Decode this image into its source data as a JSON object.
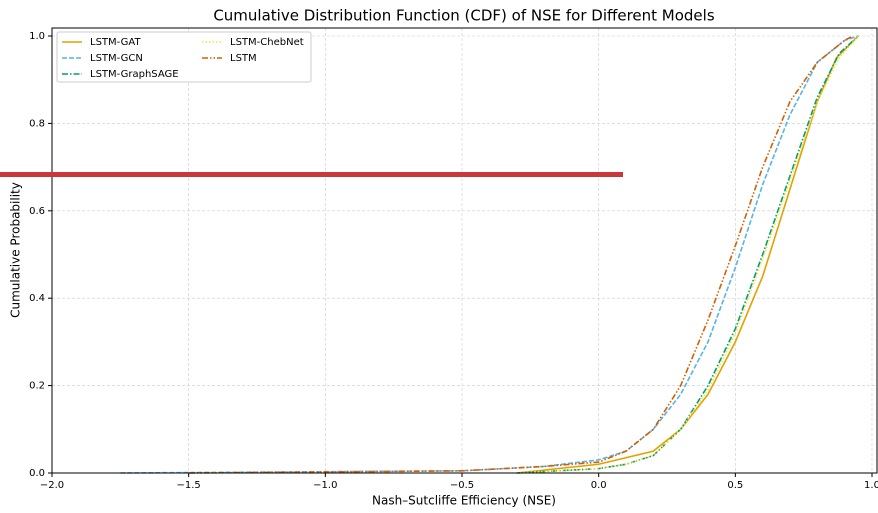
{
  "chart_data": {
    "type": "line",
    "title": "Cumulative Distribution Function (CDF) of NSE for Different Models",
    "xlabel": "Nash–Sutcliffe Efficiency (NSE)",
    "ylabel": "Cumulative Probability",
    "xlim": [
      -2.0,
      1.0
    ],
    "ylim": [
      0,
      1.0
    ],
    "xticks": [
      {
        "value": -2.0,
        "label": "−2.0"
      },
      {
        "value": -1.5,
        "label": "−1.5"
      },
      {
        "value": -1.0,
        "label": "−1.0"
      },
      {
        "value": -0.5,
        "label": "−0.5"
      },
      {
        "value": 0,
        "label": "0.0"
      },
      {
        "value": 0.5,
        "label": "0.5"
      },
      {
        "value": 1.0,
        "label": "1.0"
      }
    ],
    "yticks": [
      {
        "value": 0,
        "label": "0.0"
      },
      {
        "value": 0.2,
        "label": "0.2"
      },
      {
        "value": 0.4,
        "label": "0.4"
      },
      {
        "value": 0.6,
        "label": "0.6"
      },
      {
        "value": 0.8,
        "label": "0.8"
      },
      {
        "value": 1.0,
        "label": "1.0"
      }
    ],
    "grid": true,
    "legend": "upper-left",
    "series": [
      {
        "name": "LSTM-GAT",
        "color": "#E69F00",
        "linestyle": "solid",
        "x": [
          -0.3,
          0.0,
          0.2,
          0.3,
          0.4,
          0.5,
          0.6,
          0.7,
          0.8,
          0.87,
          0.95
        ],
        "values": [
          0.0,
          0.02,
          0.05,
          0.1,
          0.18,
          0.3,
          0.45,
          0.65,
          0.85,
          0.95,
          1.0
        ]
      },
      {
        "name": "LSTM-GCN",
        "color": "#56B4E9",
        "linestyle": "dashed",
        "x": [
          -1.75,
          -0.5,
          -0.2,
          0.0,
          0.1,
          0.2,
          0.3,
          0.4,
          0.5,
          0.6,
          0.7,
          0.8,
          0.9,
          0.95
        ],
        "values": [
          0.0,
          0.005,
          0.015,
          0.03,
          0.05,
          0.1,
          0.18,
          0.3,
          0.47,
          0.66,
          0.82,
          0.94,
          0.99,
          1.0
        ]
      },
      {
        "name": "LSTM-GraphSAGE",
        "color": "#009E73",
        "linestyle": "dashdot",
        "x": [
          -0.3,
          0.0,
          0.1,
          0.2,
          0.3,
          0.4,
          0.5,
          0.6,
          0.7,
          0.8,
          0.88,
          0.95
        ],
        "values": [
          0.0,
          0.01,
          0.02,
          0.04,
          0.1,
          0.2,
          0.33,
          0.5,
          0.68,
          0.86,
          0.96,
          1.0
        ]
      },
      {
        "name": "LSTM-ChebNet",
        "color": "#F0E442",
        "linestyle": "dotted",
        "x": [
          -0.3,
          0.0,
          0.1,
          0.2,
          0.3,
          0.4,
          0.5,
          0.6,
          0.7,
          0.8,
          0.88,
          0.95
        ],
        "values": [
          0.0,
          0.01,
          0.02,
          0.04,
          0.1,
          0.19,
          0.32,
          0.49,
          0.67,
          0.85,
          0.95,
          1.0
        ]
      },
      {
        "name": "LSTM",
        "color": "#D55E00",
        "linestyle": "dashdotdot",
        "x": [
          -1.5,
          -0.5,
          -0.2,
          0.0,
          0.1,
          0.2,
          0.3,
          0.4,
          0.5,
          0.6,
          0.7,
          0.8,
          0.9,
          0.93
        ],
        "values": [
          0.0,
          0.005,
          0.015,
          0.025,
          0.05,
          0.1,
          0.2,
          0.35,
          0.52,
          0.7,
          0.85,
          0.94,
          0.99,
          1.0
        ]
      }
    ]
  }
}
